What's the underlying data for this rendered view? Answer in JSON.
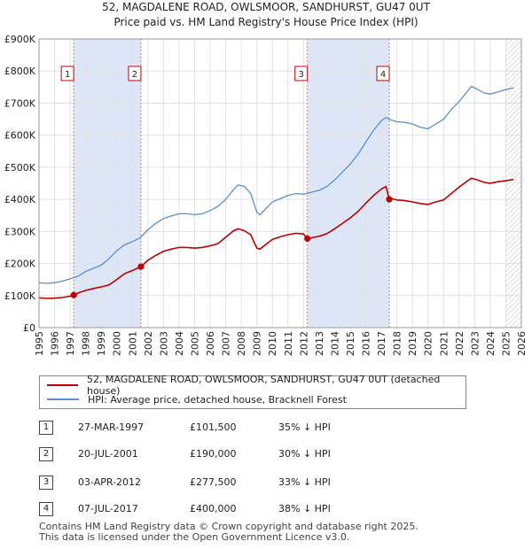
{
  "title_line1": "52, MAGDALENE ROAD, OWLSMOOR, SANDHURST, GU47 0UT",
  "title_line2": "Price paid vs. HM Land Registry's House Price Index (HPI)",
  "chart_data": {
    "type": "line",
    "x_range": [
      1995,
      2026
    ],
    "ylim": [
      0,
      900000
    ],
    "y_ticks": [
      {
        "v": 0,
        "label": "£0"
      },
      {
        "v": 100000,
        "label": "£100K"
      },
      {
        "v": 200000,
        "label": "£200K"
      },
      {
        "v": 300000,
        "label": "£300K"
      },
      {
        "v": 400000,
        "label": "£400K"
      },
      {
        "v": 500000,
        "label": "£500K"
      },
      {
        "v": 600000,
        "label": "£600K"
      },
      {
        "v": 700000,
        "label": "£700K"
      },
      {
        "v": 800000,
        "label": "£800K"
      },
      {
        "v": 900000,
        "label": "£900K"
      }
    ],
    "x_ticks": [
      "1995",
      "1996",
      "1997",
      "1998",
      "1999",
      "2000",
      "2001",
      "2002",
      "2003",
      "2004",
      "2005",
      "2006",
      "2007",
      "2008",
      "2009",
      "2010",
      "2011",
      "2012",
      "2013",
      "2014",
      "2015",
      "2016",
      "2017",
      "2018",
      "2019",
      "2020",
      "2021",
      "2022",
      "2023",
      "2024",
      "2025",
      "2026"
    ],
    "grid": true,
    "shaded_ranges": [
      [
        1997.23,
        2001.55
      ],
      [
        2012.25,
        2017.51
      ]
    ],
    "hatched_from": 2025.0,
    "series": [
      {
        "name": "HPI: Average price, detached house, Bracknell Forest",
        "color": "#5b8ed6",
        "points": [
          [
            1995.0,
            140000
          ],
          [
            1995.5,
            138000
          ],
          [
            1996.0,
            140000
          ],
          [
            1996.5,
            145000
          ],
          [
            1997.0,
            152000
          ],
          [
            1997.5,
            160000
          ],
          [
            1998.0,
            175000
          ],
          [
            1998.5,
            185000
          ],
          [
            1999.0,
            195000
          ],
          [
            1999.5,
            215000
          ],
          [
            2000.0,
            240000
          ],
          [
            2000.5,
            258000
          ],
          [
            2001.0,
            268000
          ],
          [
            2001.5,
            280000
          ],
          [
            2002.0,
            305000
          ],
          [
            2002.5,
            325000
          ],
          [
            2003.0,
            340000
          ],
          [
            2003.5,
            348000
          ],
          [
            2004.0,
            355000
          ],
          [
            2004.5,
            355000
          ],
          [
            2005.0,
            352000
          ],
          [
            2005.5,
            355000
          ],
          [
            2006.0,
            365000
          ],
          [
            2006.5,
            378000
          ],
          [
            2007.0,
            400000
          ],
          [
            2007.5,
            430000
          ],
          [
            2007.8,
            445000
          ],
          [
            2008.2,
            440000
          ],
          [
            2008.6,
            418000
          ],
          [
            2009.0,
            360000
          ],
          [
            2009.2,
            352000
          ],
          [
            2009.6,
            372000
          ],
          [
            2010.0,
            392000
          ],
          [
            2010.5,
            402000
          ],
          [
            2011.0,
            412000
          ],
          [
            2011.5,
            418000
          ],
          [
            2012.0,
            416000
          ],
          [
            2012.5,
            422000
          ],
          [
            2013.0,
            428000
          ],
          [
            2013.5,
            440000
          ],
          [
            2014.0,
            460000
          ],
          [
            2014.5,
            485000
          ],
          [
            2015.0,
            510000
          ],
          [
            2015.5,
            540000
          ],
          [
            2016.0,
            578000
          ],
          [
            2016.5,
            615000
          ],
          [
            2017.0,
            645000
          ],
          [
            2017.3,
            655000
          ],
          [
            2017.6,
            648000
          ],
          [
            2018.0,
            642000
          ],
          [
            2018.5,
            640000
          ],
          [
            2019.0,
            635000
          ],
          [
            2019.5,
            625000
          ],
          [
            2020.0,
            620000
          ],
          [
            2020.5,
            635000
          ],
          [
            2021.0,
            650000
          ],
          [
            2021.5,
            680000
          ],
          [
            2022.0,
            705000
          ],
          [
            2022.5,
            735000
          ],
          [
            2022.8,
            752000
          ],
          [
            2023.2,
            742000
          ],
          [
            2023.6,
            732000
          ],
          [
            2024.0,
            728000
          ],
          [
            2024.5,
            735000
          ],
          [
            2025.0,
            742000
          ],
          [
            2025.5,
            748000
          ]
        ]
      },
      {
        "name": "52, MAGDALENE ROAD, OWLSMOOR, SANDHURST, GU47 0UT (detached house)",
        "color": "#c00000",
        "points": [
          [
            1995.0,
            93000
          ],
          [
            1995.5,
            91000
          ],
          [
            1996.0,
            92000
          ],
          [
            1996.5,
            94000
          ],
          [
            1997.0,
            98000
          ],
          [
            1997.23,
            101500
          ],
          [
            1997.5,
            108000
          ],
          [
            1998.0,
            116000
          ],
          [
            1998.5,
            122000
          ],
          [
            1999.0,
            127000
          ],
          [
            1999.5,
            133000
          ],
          [
            2000.0,
            150000
          ],
          [
            2000.5,
            168000
          ],
          [
            2001.0,
            178000
          ],
          [
            2001.55,
            190000
          ],
          [
            2002.0,
            210000
          ],
          [
            2002.5,
            225000
          ],
          [
            2003.0,
            238000
          ],
          [
            2003.5,
            245000
          ],
          [
            2004.0,
            250000
          ],
          [
            2004.5,
            250000
          ],
          [
            2005.0,
            248000
          ],
          [
            2005.5,
            250000
          ],
          [
            2006.0,
            255000
          ],
          [
            2006.5,
            262000
          ],
          [
            2007.0,
            282000
          ],
          [
            2007.5,
            302000
          ],
          [
            2007.8,
            308000
          ],
          [
            2008.2,
            302000
          ],
          [
            2008.6,
            290000
          ],
          [
            2009.0,
            248000
          ],
          [
            2009.2,
            245000
          ],
          [
            2009.6,
            260000
          ],
          [
            2010.0,
            275000
          ],
          [
            2010.5,
            283000
          ],
          [
            2011.0,
            290000
          ],
          [
            2011.5,
            294000
          ],
          [
            2012.0,
            292000
          ],
          [
            2012.25,
            277500
          ],
          [
            2012.5,
            280000
          ],
          [
            2013.0,
            285000
          ],
          [
            2013.5,
            293000
          ],
          [
            2014.0,
            308000
          ],
          [
            2014.5,
            325000
          ],
          [
            2015.0,
            342000
          ],
          [
            2015.5,
            362000
          ],
          [
            2016.0,
            388000
          ],
          [
            2016.5,
            412000
          ],
          [
            2017.0,
            432000
          ],
          [
            2017.3,
            440000
          ],
          [
            2017.51,
            400000
          ],
          [
            2017.7,
            402000
          ],
          [
            2018.0,
            398000
          ],
          [
            2018.5,
            396000
          ],
          [
            2019.0,
            392000
          ],
          [
            2019.5,
            387000
          ],
          [
            2020.0,
            384000
          ],
          [
            2020.5,
            392000
          ],
          [
            2021.0,
            398000
          ],
          [
            2021.5,
            418000
          ],
          [
            2022.0,
            438000
          ],
          [
            2022.5,
            456000
          ],
          [
            2022.8,
            466000
          ],
          [
            2023.2,
            460000
          ],
          [
            2023.6,
            453000
          ],
          [
            2024.0,
            450000
          ],
          [
            2024.5,
            455000
          ],
          [
            2025.0,
            458000
          ],
          [
            2025.5,
            462000
          ]
        ]
      }
    ],
    "markers": [
      {
        "label": "1",
        "x": 1997.23,
        "y": 101500
      },
      {
        "label": "2",
        "x": 2001.55,
        "y": 190000
      },
      {
        "label": "3",
        "x": 2012.25,
        "y": 277500
      },
      {
        "label": "4",
        "x": 2017.51,
        "y": 400000
      }
    ]
  },
  "legend": {
    "items": [
      {
        "label": "52, MAGDALENE ROAD, OWLSMOOR, SANDHURST, GU47 0UT (detached house)",
        "color": "#c00000"
      },
      {
        "label": "HPI: Average price, detached house, Bracknell Forest",
        "color": "#5b8ed6"
      }
    ]
  },
  "transactions": [
    {
      "num": "1",
      "date": "27-MAR-1997",
      "price": "£101,500",
      "hpi": "35% ↓ HPI"
    },
    {
      "num": "2",
      "date": "20-JUL-2001",
      "price": "£190,000",
      "hpi": "30% ↓ HPI"
    },
    {
      "num": "3",
      "date": "03-APR-2012",
      "price": "£277,500",
      "hpi": "33% ↓ HPI"
    },
    {
      "num": "4",
      "date": "07-JUL-2017",
      "price": "£400,000",
      "hpi": "38% ↓ HPI"
    }
  ],
  "footer_line1": "Contains HM Land Registry data © Crown copyright and database right 2025.",
  "footer_line2": "This data is licensed under the Open Government Licence v3.0."
}
